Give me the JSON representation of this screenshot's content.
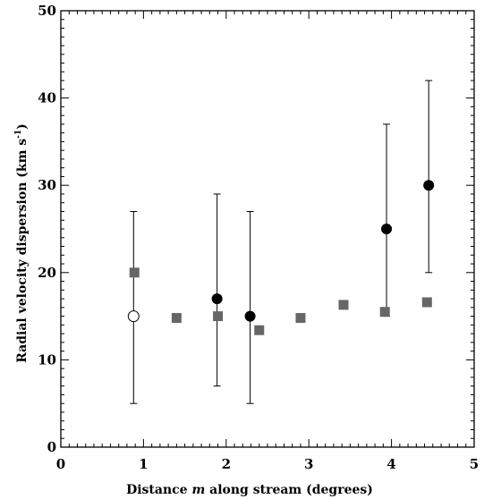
{
  "chart_data": {
    "type": "scatter",
    "title": "",
    "xlabel": {
      "before": "Distance ",
      "italic": "m",
      "after": " along stream (degrees)"
    },
    "ylabel": {
      "text": "Radial velocity dispersion (km s",
      "superscript": "-1",
      "close": ")"
    },
    "xlim": [
      0,
      5
    ],
    "ylim": [
      0,
      50
    ],
    "x_ticks": [
      "0",
      "1",
      "2",
      "3",
      "4",
      "5"
    ],
    "y_ticks": [
      "0",
      "10",
      "20",
      "30",
      "40",
      "50"
    ],
    "grid": false,
    "series": [
      {
        "marker": "square",
        "color": "#666666",
        "points": [
          {
            "x": 0.89,
            "y": 20.0
          },
          {
            "x": 1.4,
            "y": 14.8
          },
          {
            "x": 1.9,
            "y": 15.0
          },
          {
            "x": 2.4,
            "y": 13.4
          },
          {
            "x": 2.9,
            "y": 14.8
          },
          {
            "x": 3.42,
            "y": 16.3
          },
          {
            "x": 3.92,
            "y": 15.5
          },
          {
            "x": 4.43,
            "y": 16.6
          }
        ]
      },
      {
        "marker": "circle-filled",
        "color": "#000000",
        "points": [
          {
            "x": 1.89,
            "y": 17.0,
            "y_low": 7.0,
            "y_high": 29.0
          },
          {
            "x": 2.29,
            "y": 15.0,
            "y_low": 5.0,
            "y_high": 27.0
          },
          {
            "x": 3.94,
            "y": 25.0,
            "y_low": 15.0,
            "y_high": 37.0
          },
          {
            "x": 4.45,
            "y": 30.0,
            "y_low": 20.0,
            "y_high": 42.0
          }
        ]
      },
      {
        "marker": "circle-open",
        "color": "#000000",
        "points": [
          {
            "x": 0.88,
            "y": 15.0,
            "y_low": 5.0,
            "y_high": 27.0
          }
        ]
      }
    ]
  }
}
